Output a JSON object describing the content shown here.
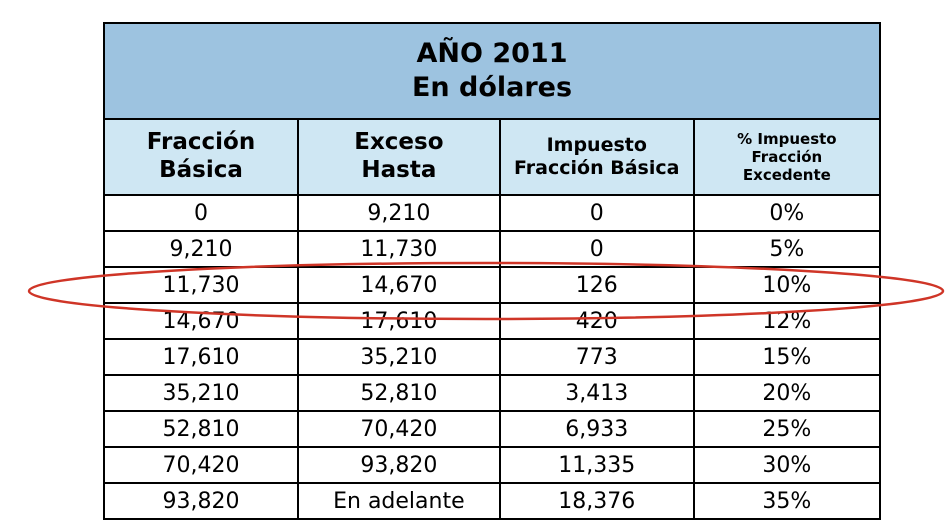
{
  "table": {
    "title": {
      "line1": "AÑO 2011",
      "line2": "En dólares"
    },
    "columns": [
      "Fracción\nBásica",
      "Exceso\nHasta",
      "Impuesto\nFracción Básica",
      "% Impuesto\nFracción\nExcedente"
    ],
    "rows": [
      [
        "0",
        "9,210",
        "0",
        "0%"
      ],
      [
        "9,210",
        "11,730",
        "0",
        "5%"
      ],
      [
        "11,730",
        "14,670",
        "126",
        "10%"
      ],
      [
        "14,670",
        "17,610",
        "420",
        "12%"
      ],
      [
        "17,610",
        "35,210",
        "773",
        "15%"
      ],
      [
        "35,210",
        "52,810",
        "3,413",
        "20%"
      ],
      [
        "52,810",
        "70,420",
        "6,933",
        "25%"
      ],
      [
        "70,420",
        "93,820",
        "11,335",
        "30%"
      ],
      [
        "93,820",
        "En adelante",
        "18,376",
        "35%"
      ]
    ],
    "highlighted_row_index": 2
  },
  "colors": {
    "title_bg": "#9dc3e0",
    "header_bg": "#cfe7f3",
    "border": "#000000",
    "highlight": "#cf3527"
  }
}
